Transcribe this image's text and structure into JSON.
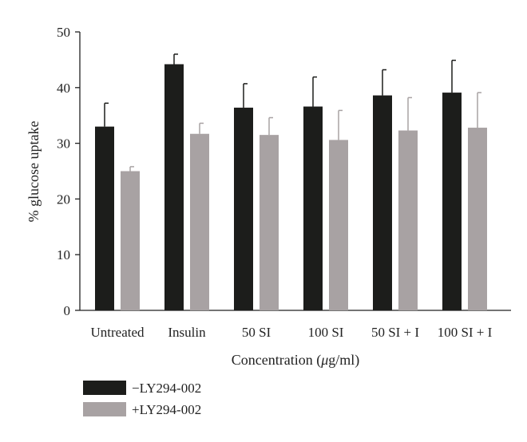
{
  "chart_data": {
    "type": "bar",
    "categories": [
      "Untreated",
      "Insulin",
      "50 SI",
      "100 SI",
      "50 SI + I",
      "100 SI + I"
    ],
    "series": [
      {
        "name": "−LY294-002",
        "color": "#1c1d1b",
        "values": [
          33.0,
          44.2,
          36.4,
          36.6,
          38.6,
          39.1
        ],
        "errors": [
          4.2,
          1.8,
          4.3,
          5.3,
          4.6,
          5.8
        ]
      },
      {
        "name": "+LY294-002",
        "color": "#a8a2a3",
        "values": [
          25.0,
          31.7,
          31.5,
          30.6,
          32.3,
          32.8
        ],
        "errors": [
          0.8,
          1.9,
          3.1,
          5.3,
          5.9,
          6.3
        ]
      }
    ],
    "xlabel_prefix": "Concentration (",
    "xlabel_mu": "μ",
    "xlabel_suffix": "g/ml)",
    "ylabel": "% glucose uptake",
    "ylim": [
      0,
      50
    ],
    "yticks": [
      0,
      10,
      20,
      30,
      40,
      50
    ],
    "legend_position": "bottom-left",
    "grid": false
  }
}
